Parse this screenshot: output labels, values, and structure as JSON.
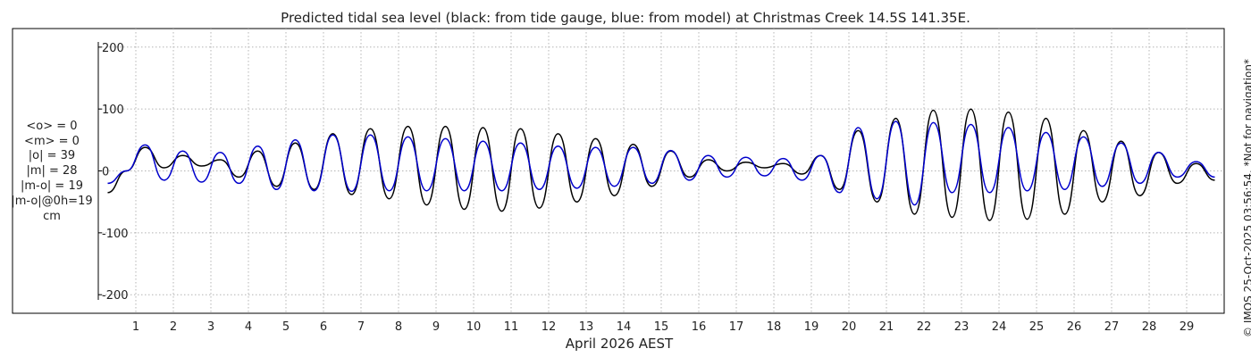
{
  "stats": [
    "<o> = 0",
    "<m> = 0",
    "|o| = 39",
    "|m| = 28",
    "|m-o| = 19",
    "|m-o|@0h=19",
    "cm"
  ],
  "side_note": "© IMOS 25-Oct-2025 03:56:54. *Not for navigation*",
  "chart_data": {
    "type": "line",
    "title": "Predicted tidal sea level (black: from tide gauge, blue: from model) at Christmas Creek 14.5S 141.35E.",
    "xlabel": "April 2026 AEST",
    "ylabel": "",
    "xlim": [
      0,
      30
    ],
    "ylim": [
      -230,
      230
    ],
    "yticks": [
      -200,
      -100,
      0,
      100,
      200
    ],
    "xticks": [
      1,
      2,
      3,
      4,
      5,
      6,
      7,
      8,
      9,
      10,
      11,
      12,
      13,
      14,
      15,
      16,
      17,
      18,
      19,
      20,
      21,
      22,
      23,
      24,
      25,
      26,
      27,
      28,
      29
    ],
    "grid": true,
    "colors": {
      "gauge": "#000000",
      "model": "#0000cc",
      "grid": "#b4b4b4",
      "axis": "#000000"
    },
    "series": [
      {
        "color": "#000000",
        "x": [
          0.25,
          0.75,
          1.25,
          1.75,
          2.25,
          2.75,
          3.25,
          3.75,
          4.25,
          4.75,
          5.25,
          5.75,
          6.25,
          6.75,
          7.25,
          7.75,
          8.25,
          8.75,
          9.25,
          9.75,
          10.25,
          10.75,
          11.25,
          11.75,
          12.25,
          12.75,
          13.25,
          13.75,
          14.25,
          14.75,
          15.25,
          15.75,
          16.25,
          16.75,
          17.25,
          17.75,
          18.25,
          18.75,
          19.25,
          19.75,
          20.25,
          20.75,
          21.25,
          21.75,
          22.25,
          22.75,
          23.25,
          23.75,
          24.25,
          24.75,
          25.25,
          25.75,
          26.25,
          26.75,
          27.25,
          27.75,
          28.25,
          28.75,
          29.25,
          29.75
        ],
        "values": [
          -35,
          0,
          38,
          5,
          25,
          8,
          18,
          -10,
          32,
          -25,
          45,
          -30,
          60,
          -38,
          68,
          -45,
          72,
          -55,
          72,
          -62,
          70,
          -65,
          68,
          -60,
          60,
          -50,
          52,
          -40,
          43,
          -25,
          32,
          -10,
          18,
          0,
          14,
          5,
          12,
          -5,
          25,
          -30,
          65,
          -50,
          85,
          -70,
          98,
          -75,
          100,
          -80,
          95,
          -78,
          85,
          -70,
          65,
          -50,
          48,
          -40,
          30,
          -20,
          12,
          -15
        ]
      },
      {
        "color": "#0000cc",
        "x": [
          0.25,
          0.75,
          1.25,
          1.75,
          2.25,
          2.75,
          3.25,
          3.75,
          4.25,
          4.75,
          5.25,
          5.75,
          6.25,
          6.75,
          7.25,
          7.75,
          8.25,
          8.75,
          9.25,
          9.75,
          10.25,
          10.75,
          11.25,
          11.75,
          12.25,
          12.75,
          13.25,
          13.75,
          14.25,
          14.75,
          15.25,
          15.75,
          16.25,
          16.75,
          17.25,
          17.75,
          18.25,
          18.75,
          19.25,
          19.75,
          20.25,
          20.75,
          21.25,
          21.75,
          22.25,
          22.75,
          23.25,
          23.75,
          24.25,
          24.75,
          25.25,
          25.75,
          26.25,
          26.75,
          27.25,
          27.75,
          28.25,
          28.75,
          29.25,
          29.75
        ],
        "values": [
          -20,
          0,
          42,
          -15,
          32,
          -18,
          30,
          -20,
          40,
          -30,
          50,
          -32,
          58,
          -33,
          58,
          -32,
          55,
          -32,
          52,
          -32,
          48,
          -32,
          45,
          -30,
          40,
          -28,
          38,
          -25,
          38,
          -20,
          33,
          -15,
          25,
          -10,
          22,
          -8,
          20,
          -15,
          25,
          -35,
          70,
          -45,
          80,
          -55,
          78,
          -35,
          75,
          -35,
          70,
          -32,
          62,
          -30,
          55,
          -25,
          45,
          -20,
          30,
          -10,
          15,
          -10
        ]
      }
    ]
  }
}
